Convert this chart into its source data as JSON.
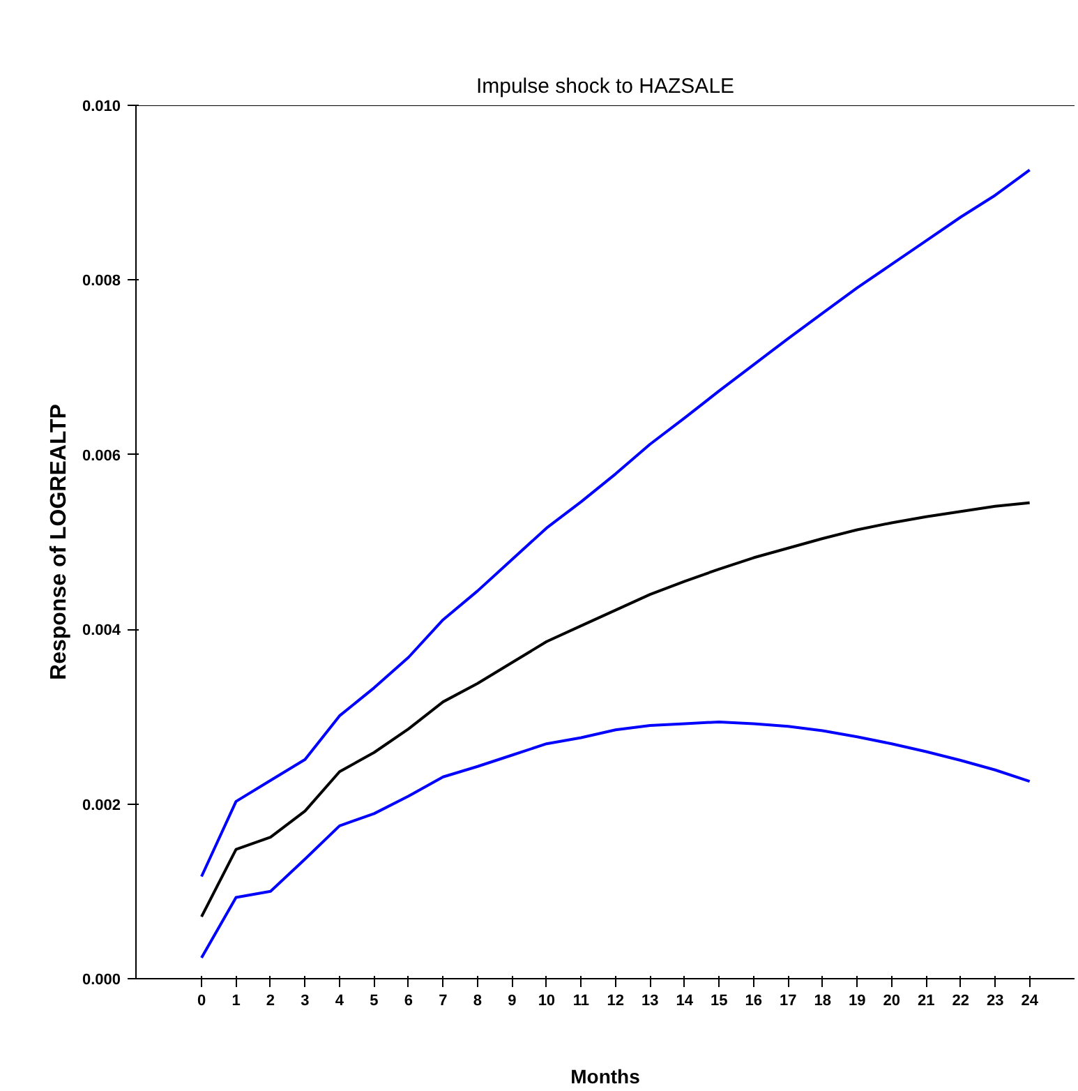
{
  "chart_data": {
    "type": "line",
    "title": "Impulse shock to HAZSALE",
    "xlabel": "Months",
    "ylabel": "Response of LOGREALTP",
    "x": [
      0,
      1,
      2,
      3,
      4,
      5,
      6,
      7,
      8,
      9,
      10,
      11,
      12,
      13,
      14,
      15,
      16,
      17,
      18,
      19,
      20,
      21,
      22,
      23,
      24
    ],
    "xlim": [
      -1.9,
      25.3
    ],
    "xticks": [
      0,
      1,
      2,
      3,
      4,
      5,
      6,
      7,
      8,
      9,
      10,
      11,
      12,
      13,
      14,
      15,
      16,
      17,
      18,
      19,
      20,
      21,
      22,
      23,
      24
    ],
    "ylim": [
      0,
      0.01
    ],
    "yticks": [
      {
        "value": 0,
        "label": "0.000"
      },
      {
        "value": 0.002,
        "label": "0.002"
      },
      {
        "value": 0.004,
        "label": "0.004"
      },
      {
        "value": 0.006,
        "label": "0.006"
      },
      {
        "value": 0.008,
        "label": "0.008"
      },
      {
        "value": 0.01,
        "label": "0.010"
      }
    ],
    "grid": false,
    "line_style": "solid",
    "marker": "none",
    "series": [
      {
        "color": "#0000ff",
        "values": [
          0.00117,
          0.00203,
          0.00227,
          0.00251,
          0.00301,
          0.00333,
          0.00368,
          0.00411,
          0.00444,
          0.0048,
          0.00516,
          0.00546,
          0.00578,
          0.00612,
          0.00642,
          0.00673,
          0.00703,
          0.00733,
          0.00762,
          0.00791,
          0.00818,
          0.00845,
          0.00872,
          0.00897,
          0.00926
        ]
      },
      {
        "color": "#000000",
        "values": [
          0.00071,
          0.00148,
          0.00162,
          0.00192,
          0.00237,
          0.00259,
          0.00286,
          0.00317,
          0.00338,
          0.00362,
          0.00386,
          0.00404,
          0.00422,
          0.0044,
          0.00455,
          0.00469,
          0.00482,
          0.00493,
          0.00504,
          0.00514,
          0.00522,
          0.00529,
          0.00535,
          0.00541,
          0.00545
        ]
      },
      {
        "color": "#0000ff",
        "values": [
          0.00024,
          0.00093,
          0.001,
          0.00137,
          0.00175,
          0.00189,
          0.00209,
          0.00231,
          0.00243,
          0.00256,
          0.00269,
          0.00276,
          0.00285,
          0.0029,
          0.00292,
          0.00294,
          0.00292,
          0.00289,
          0.00284,
          0.00277,
          0.00269,
          0.0026,
          0.0025,
          0.00239,
          0.00226
        ]
      }
    ]
  }
}
